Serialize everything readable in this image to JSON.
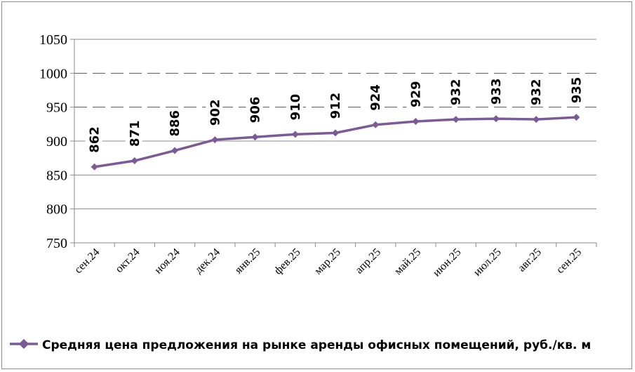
{
  "chart_data": {
    "type": "line",
    "title": "",
    "xlabel": "",
    "ylabel": "",
    "categories": [
      "сен.24",
      "окт.24",
      "ноя.24",
      "дек.24",
      "янв.25",
      "фев.25",
      "мар.25",
      "апр.25",
      "май.25",
      "июн.25",
      "июл.25",
      "авг.25",
      "сен.25"
    ],
    "series": [
      {
        "name": "Средняя цена предложения на рынке аренды офисных помещений,  руб./кв. м",
        "values": [
          862,
          871,
          886,
          902,
          906,
          910,
          912,
          924,
          929,
          932,
          933,
          932,
          935
        ],
        "color": "#7b5a97"
      }
    ],
    "ylim": [
      750,
      1050
    ],
    "yticks": [
      750,
      800,
      850,
      900,
      950,
      1000,
      1050
    ],
    "grid": true,
    "legend_position": "bottom"
  }
}
